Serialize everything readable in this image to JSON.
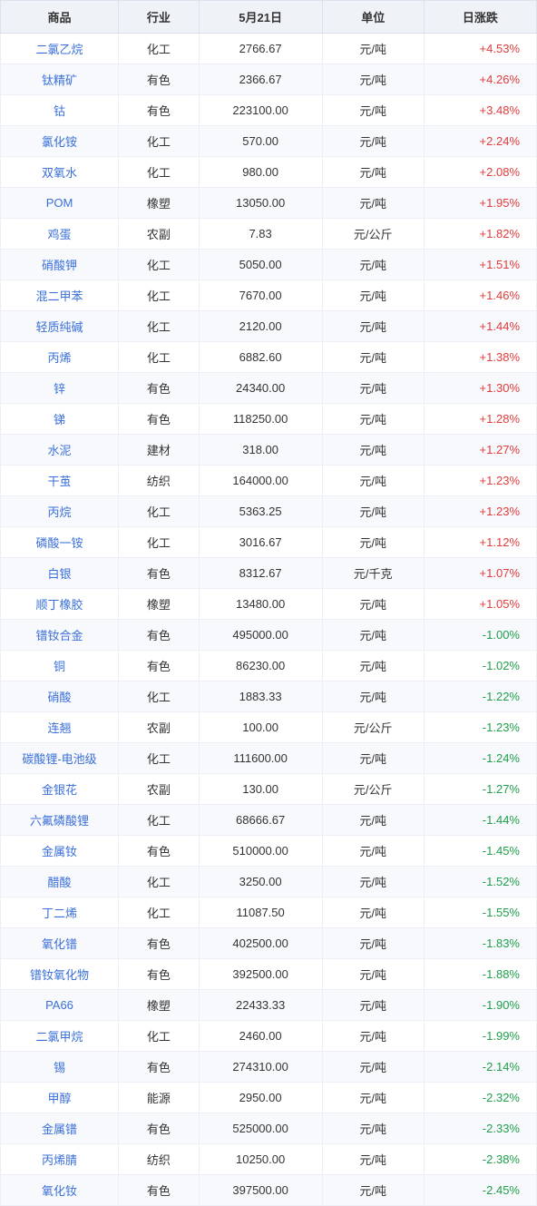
{
  "columns": [
    "商品",
    "行业",
    "5月21日",
    "单位",
    "日涨跌"
  ],
  "rows": [
    {
      "product": "二氯乙烷",
      "industry": "化工",
      "price": "2766.67",
      "unit": "元/吨",
      "change": "+4.53%",
      "dir": "pos"
    },
    {
      "product": "钛精矿",
      "industry": "有色",
      "price": "2366.67",
      "unit": "元/吨",
      "change": "+4.26%",
      "dir": "pos"
    },
    {
      "product": "钴",
      "industry": "有色",
      "price": "223100.00",
      "unit": "元/吨",
      "change": "+3.48%",
      "dir": "pos"
    },
    {
      "product": "氯化铵",
      "industry": "化工",
      "price": "570.00",
      "unit": "元/吨",
      "change": "+2.24%",
      "dir": "pos"
    },
    {
      "product": "双氧水",
      "industry": "化工",
      "price": "980.00",
      "unit": "元/吨",
      "change": "+2.08%",
      "dir": "pos"
    },
    {
      "product": "POM",
      "industry": "橡塑",
      "price": "13050.00",
      "unit": "元/吨",
      "change": "+1.95%",
      "dir": "pos"
    },
    {
      "product": "鸡蛋",
      "industry": "农副",
      "price": "7.83",
      "unit": "元/公斤",
      "change": "+1.82%",
      "dir": "pos"
    },
    {
      "product": "硝酸钾",
      "industry": "化工",
      "price": "5050.00",
      "unit": "元/吨",
      "change": "+1.51%",
      "dir": "pos"
    },
    {
      "product": "混二甲苯",
      "industry": "化工",
      "price": "7670.00",
      "unit": "元/吨",
      "change": "+1.46%",
      "dir": "pos"
    },
    {
      "product": "轻质纯碱",
      "industry": "化工",
      "price": "2120.00",
      "unit": "元/吨",
      "change": "+1.44%",
      "dir": "pos"
    },
    {
      "product": "丙烯",
      "industry": "化工",
      "price": "6882.60",
      "unit": "元/吨",
      "change": "+1.38%",
      "dir": "pos"
    },
    {
      "product": "锌",
      "industry": "有色",
      "price": "24340.00",
      "unit": "元/吨",
      "change": "+1.30%",
      "dir": "pos"
    },
    {
      "product": "锑",
      "industry": "有色",
      "price": "118250.00",
      "unit": "元/吨",
      "change": "+1.28%",
      "dir": "pos"
    },
    {
      "product": "水泥",
      "industry": "建材",
      "price": "318.00",
      "unit": "元/吨",
      "change": "+1.27%",
      "dir": "pos"
    },
    {
      "product": "干茧",
      "industry": "纺织",
      "price": "164000.00",
      "unit": "元/吨",
      "change": "+1.23%",
      "dir": "pos"
    },
    {
      "product": "丙烷",
      "industry": "化工",
      "price": "5363.25",
      "unit": "元/吨",
      "change": "+1.23%",
      "dir": "pos"
    },
    {
      "product": "磷酸一铵",
      "industry": "化工",
      "price": "3016.67",
      "unit": "元/吨",
      "change": "+1.12%",
      "dir": "pos"
    },
    {
      "product": "白银",
      "industry": "有色",
      "price": "8312.67",
      "unit": "元/千克",
      "change": "+1.07%",
      "dir": "pos"
    },
    {
      "product": "顺丁橡胶",
      "industry": "橡塑",
      "price": "13480.00",
      "unit": "元/吨",
      "change": "+1.05%",
      "dir": "pos"
    },
    {
      "product": "镨钕合金",
      "industry": "有色",
      "price": "495000.00",
      "unit": "元/吨",
      "change": "-1.00%",
      "dir": "neg"
    },
    {
      "product": "铜",
      "industry": "有色",
      "price": "86230.00",
      "unit": "元/吨",
      "change": "-1.02%",
      "dir": "neg"
    },
    {
      "product": "硝酸",
      "industry": "化工",
      "price": "1883.33",
      "unit": "元/吨",
      "change": "-1.22%",
      "dir": "neg"
    },
    {
      "product": "连翘",
      "industry": "农副",
      "price": "100.00",
      "unit": "元/公斤",
      "change": "-1.23%",
      "dir": "neg"
    },
    {
      "product": "碳酸锂-电池级",
      "industry": "化工",
      "price": "111600.00",
      "unit": "元/吨",
      "change": "-1.24%",
      "dir": "neg"
    },
    {
      "product": "金银花",
      "industry": "农副",
      "price": "130.00",
      "unit": "元/公斤",
      "change": "-1.27%",
      "dir": "neg"
    },
    {
      "product": "六氟磷酸锂",
      "industry": "化工",
      "price": "68666.67",
      "unit": "元/吨",
      "change": "-1.44%",
      "dir": "neg"
    },
    {
      "product": "金属钕",
      "industry": "有色",
      "price": "510000.00",
      "unit": "元/吨",
      "change": "-1.45%",
      "dir": "neg"
    },
    {
      "product": "醋酸",
      "industry": "化工",
      "price": "3250.00",
      "unit": "元/吨",
      "change": "-1.52%",
      "dir": "neg"
    },
    {
      "product": "丁二烯",
      "industry": "化工",
      "price": "11087.50",
      "unit": "元/吨",
      "change": "-1.55%",
      "dir": "neg"
    },
    {
      "product": "氧化镨",
      "industry": "有色",
      "price": "402500.00",
      "unit": "元/吨",
      "change": "-1.83%",
      "dir": "neg"
    },
    {
      "product": "镨钕氧化物",
      "industry": "有色",
      "price": "392500.00",
      "unit": "元/吨",
      "change": "-1.88%",
      "dir": "neg"
    },
    {
      "product": "PA66",
      "industry": "橡塑",
      "price": "22433.33",
      "unit": "元/吨",
      "change": "-1.90%",
      "dir": "neg"
    },
    {
      "product": "二氯甲烷",
      "industry": "化工",
      "price": "2460.00",
      "unit": "元/吨",
      "change": "-1.99%",
      "dir": "neg"
    },
    {
      "product": "锡",
      "industry": "有色",
      "price": "274310.00",
      "unit": "元/吨",
      "change": "-2.14%",
      "dir": "neg"
    },
    {
      "product": "甲醇",
      "industry": "能源",
      "price": "2950.00",
      "unit": "元/吨",
      "change": "-2.32%",
      "dir": "neg"
    },
    {
      "product": "金属镨",
      "industry": "有色",
      "price": "525000.00",
      "unit": "元/吨",
      "change": "-2.33%",
      "dir": "neg"
    },
    {
      "product": "丙烯腈",
      "industry": "纺织",
      "price": "10250.00",
      "unit": "元/吨",
      "change": "-2.38%",
      "dir": "neg"
    },
    {
      "product": "氧化钕",
      "industry": "有色",
      "price": "397500.00",
      "unit": "元/吨",
      "change": "-2.45%",
      "dir": "neg"
    }
  ]
}
